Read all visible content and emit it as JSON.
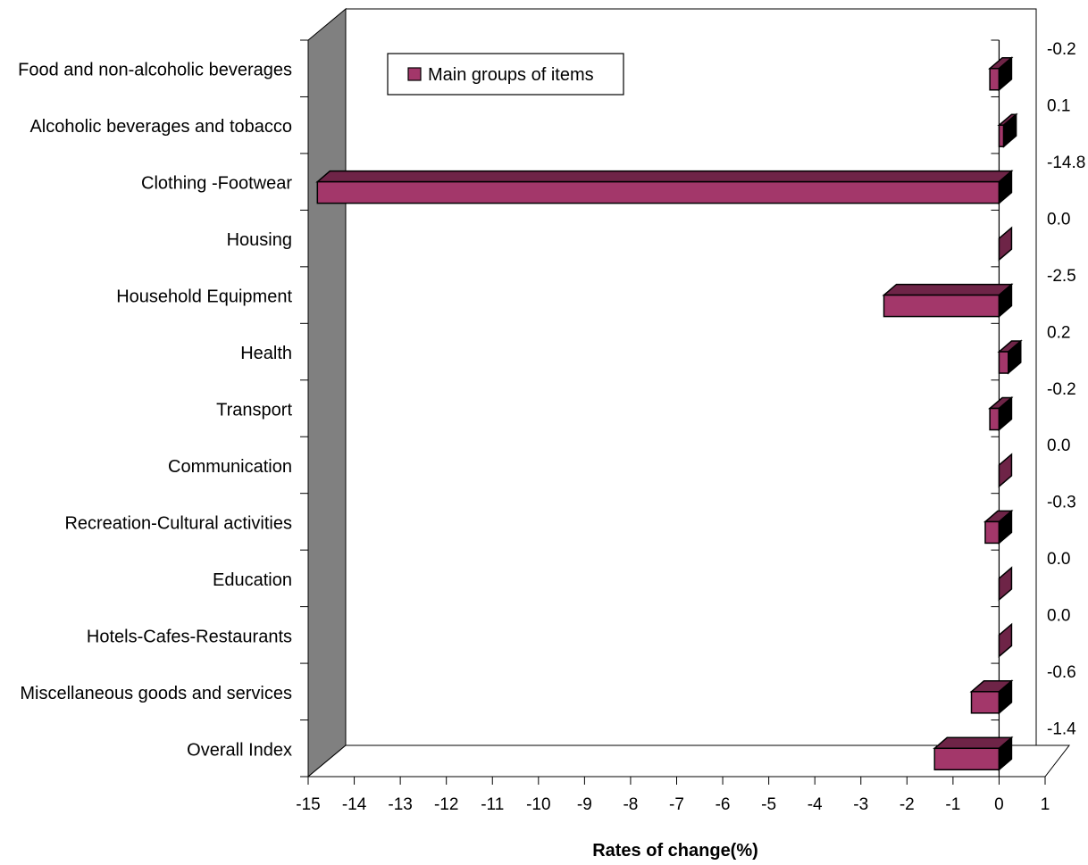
{
  "chart_data": {
    "type": "bar",
    "orientation": "horizontal",
    "three_d": true,
    "title": "",
    "xlabel": "Rates of change(%)",
    "ylabel": "",
    "xlim": [
      -15,
      1
    ],
    "x_ticks": [
      "-15",
      "-14",
      "-13",
      "-12",
      "-11",
      "-10",
      "-9",
      "-8",
      "-7",
      "-6",
      "-5",
      "-4",
      "-3",
      "-2",
      "-1",
      "0",
      "1"
    ],
    "categories": [
      "Food and non-alcoholic beverages",
      "Alcoholic beverages and tobacco",
      "Clothing -Footwear",
      "Housing",
      "Household Equipment",
      "Health",
      "Transport",
      "Communication",
      "Recreation-Cultural activities",
      "Education",
      "Hotels-Cafes-Restaurants",
      "Miscellaneous goods and services",
      "Overall Index"
    ],
    "series": [
      {
        "name": "Main groups of items",
        "values": [
          -0.2,
          0.1,
          -14.8,
          0.0,
          -2.5,
          0.2,
          -0.2,
          0.0,
          -0.3,
          0.0,
          0.0,
          -0.6,
          -1.4
        ],
        "labels": [
          "-0.2",
          "0.1",
          "-14.8",
          "0.0",
          "-2.5",
          "0.2",
          "-0.2",
          "0.0",
          "-0.3",
          "0.0",
          "0.0",
          "-0.6",
          "-1.4"
        ]
      }
    ],
    "legend_position": "top-left",
    "grid": false,
    "colors": {
      "bar_front": "#A3376A",
      "bar_top": "#6E2447",
      "bar_side": "#000000",
      "left_wall": "#808080",
      "outline": "#000000"
    }
  }
}
